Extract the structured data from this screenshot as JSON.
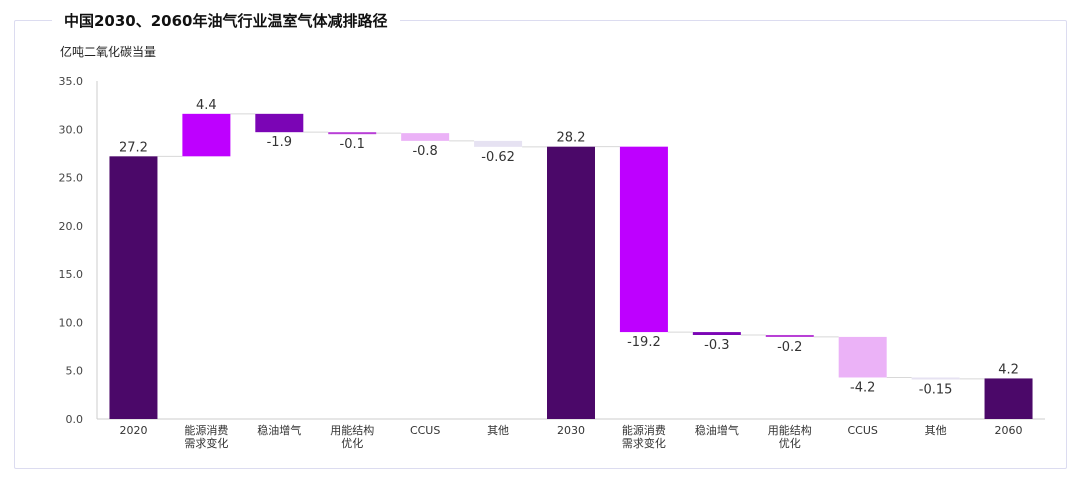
{
  "chart_data": {
    "type": "waterfall",
    "title": "中国2030、2060年油气行业温室气体减排路径",
    "ylabel": "亿吨二氧化碳当量",
    "ylim": [
      0,
      35
    ],
    "yticks": [
      "0.0",
      "5.0",
      "10.0",
      "15.0",
      "20.0",
      "25.0",
      "30.0",
      "35.0"
    ],
    "grid": false,
    "items": [
      {
        "category": [
          "2020"
        ],
        "value": 27.2,
        "label": "27.2",
        "kind": "total",
        "color": "#4b0869"
      },
      {
        "category": [
          "能源消费",
          "需求变化"
        ],
        "value": 4.4,
        "label": "4.4",
        "kind": "delta",
        "color": "#be00ff"
      },
      {
        "category": [
          "稳油增气"
        ],
        "value": -1.9,
        "label": "-1.9",
        "kind": "delta",
        "color": "#7b05b5"
      },
      {
        "category": [
          "用能结构",
          "优化"
        ],
        "value": -0.1,
        "label": "-0.1",
        "kind": "delta",
        "color": "#b83fd6"
      },
      {
        "category": [
          "CCUS"
        ],
        "value": -0.8,
        "label": "-0.8",
        "kind": "delta",
        "color": "#ebb2f7"
      },
      {
        "category": [
          "其他"
        ],
        "value": -0.62,
        "label": "-0.62",
        "kind": "delta",
        "color": "#e6e2f2"
      },
      {
        "category": [
          "2030"
        ],
        "value": 28.2,
        "label": "28.2",
        "kind": "total",
        "color": "#4b0869"
      },
      {
        "category": [
          "能源消费",
          "需求变化"
        ],
        "value": -19.2,
        "label": "-19.2",
        "kind": "delta",
        "color": "#be00ff"
      },
      {
        "category": [
          "稳油增气"
        ],
        "value": -0.3,
        "label": "-0.3",
        "kind": "delta",
        "color": "#7b05b5"
      },
      {
        "category": [
          "用能结构",
          "优化"
        ],
        "value": -0.2,
        "label": "-0.2",
        "kind": "delta",
        "color": "#b83fd6"
      },
      {
        "category": [
          "CCUS"
        ],
        "value": -4.2,
        "label": "-4.2",
        "kind": "delta",
        "color": "#ebb2f7"
      },
      {
        "category": [
          "其他"
        ],
        "value": -0.15,
        "label": "-0.15",
        "kind": "delta",
        "color": "#e6e2f2"
      },
      {
        "category": [
          "2060"
        ],
        "value": 4.2,
        "label": "4.2",
        "kind": "total",
        "color": "#4b0869"
      }
    ]
  }
}
